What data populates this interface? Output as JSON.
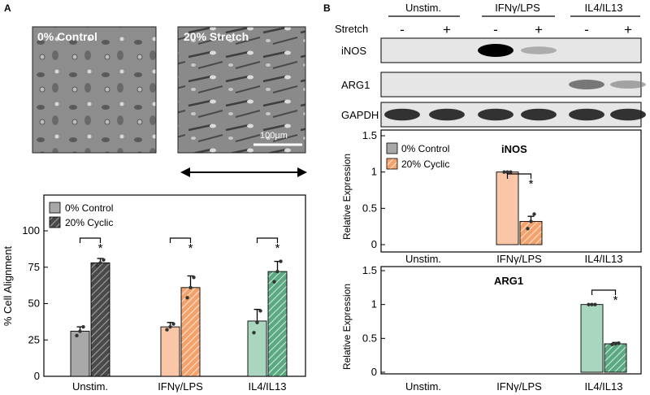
{
  "panel_a": {
    "label": "A",
    "micrographs": [
      {
        "label": "0% Control"
      },
      {
        "label": "20% Stretch",
        "scale_bar": "100µm"
      }
    ]
  },
  "panel_b": {
    "label": "B",
    "stretch_label": "Stretch",
    "groups": [
      "Unstim.",
      "IFNγ/LPS",
      "IL4/IL13"
    ],
    "stretch_marks": [
      "-",
      "+",
      "-",
      "+",
      "-",
      "+"
    ],
    "blots": [
      {
        "name": "iNOS",
        "intensity": [
          0,
          0,
          1.0,
          0.35,
          0,
          0
        ]
      },
      {
        "name": "ARG1",
        "intensity": [
          0,
          0,
          0,
          0,
          0.6,
          0.4
        ]
      },
      {
        "name": "GAPDH",
        "intensity": [
          0.85,
          0.85,
          0.85,
          0.85,
          0.85,
          0.85
        ]
      }
    ]
  },
  "colors": {
    "control_unstim": "#a8a8a8",
    "stretch_unstim": "#555555",
    "control_ifn": "#f9c7a8",
    "stretch_ifn": "#f5a16a",
    "control_il4": "#a9d6bf",
    "stretch_il4": "#5fae86",
    "legend_control": "#a8a8a8",
    "legend_stretch": "#f5a16a"
  },
  "chart_data": [
    {
      "type": "bar",
      "panel": "A",
      "categories": [
        "Unstim.",
        "IFNγ/LPS",
        "IL4/IL13"
      ],
      "legend": [
        "0% Control",
        "20% Cyclic"
      ],
      "ylabel": "% Cell Alignment",
      "ylim": [
        0,
        100
      ],
      "yticks": [
        0,
        25,
        50,
        75,
        100
      ],
      "series": [
        {
          "name": "0% Control",
          "values": [
            31,
            34,
            38
          ],
          "err": [
            3,
            3,
            8
          ],
          "points": [
            [
              28,
              31,
              34
            ],
            [
              32,
              34,
              36
            ],
            [
              30,
              37,
              45
            ]
          ]
        },
        {
          "name": "20% Cyclic",
          "values": [
            78,
            61,
            72
          ],
          "err": [
            3,
            8,
            7
          ],
          "points": [
            [
              76,
              78,
              80
            ],
            [
              54,
              61,
              68
            ],
            [
              65,
              72,
              79
            ]
          ]
        }
      ],
      "significance": [
        "*",
        "*",
        "*"
      ]
    },
    {
      "type": "bar",
      "panel": "B",
      "title": "iNOS",
      "categories": [
        "Unstim.",
        "IFNγ/LPS",
        "IL4/IL13"
      ],
      "legend": [
        "0% Control",
        "20% Cyclic"
      ],
      "ylabel": "Relative Expression",
      "ylim": [
        0,
        1.5
      ],
      "yticks": [
        0,
        0.5,
        1,
        1.5
      ],
      "series": [
        {
          "name": "0% Control",
          "values": [
            null,
            1.0,
            null
          ],
          "err": [
            null,
            0,
            null
          ],
          "points": [
            [],
            [
              1.0,
              1.0,
              1.0
            ],
            []
          ]
        },
        {
          "name": "20% Cyclic",
          "values": [
            null,
            0.32,
            null
          ],
          "err": [
            null,
            0.07,
            null
          ],
          "points": [
            [],
            [
              0.22,
              0.32,
              0.42
            ],
            []
          ]
        }
      ],
      "significance": [
        "",
        "*",
        ""
      ]
    },
    {
      "type": "bar",
      "panel": "B",
      "title": "ARG1",
      "categories": [
        "Unstim.",
        "IFNγ/LPS",
        "IL4/IL13"
      ],
      "ylabel": "Relative Expression",
      "ylim": [
        0,
        1.5
      ],
      "yticks": [
        0,
        0.5,
        1,
        1.5
      ],
      "series": [
        {
          "name": "0% Control",
          "values": [
            null,
            null,
            1.0
          ],
          "err": [
            null,
            null,
            0
          ],
          "points": [
            [],
            [],
            [
              1.0,
              1.0,
              1.0
            ]
          ]
        },
        {
          "name": "20% Cyclic",
          "values": [
            null,
            null,
            0.42
          ],
          "err": [
            null,
            null,
            0.02
          ],
          "points": [
            [],
            [],
            [
              0.41,
              0.42,
              0.43
            ]
          ]
        }
      ],
      "significance": [
        "",
        "",
        "*"
      ]
    }
  ]
}
